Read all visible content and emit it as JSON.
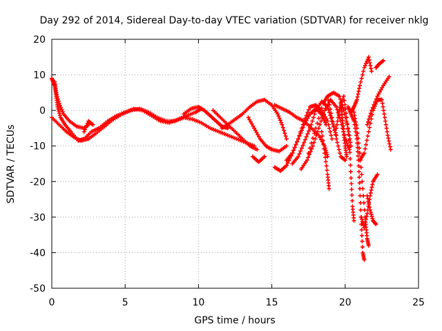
{
  "chart_data": {
    "type": "scatter",
    "title": "Day 292 of 2014, Sidereal Day-to-day VTEC variation (SDTVAR) for receiver nklg",
    "xlabel": "GPS time / hours",
    "ylabel": "SDTVAR / TECUs",
    "xlim": [
      0,
      25
    ],
    "ylim": [
      -50,
      20
    ],
    "xticks": [
      "0",
      "5",
      "10",
      "15",
      "20",
      "25"
    ],
    "yticks": [
      "-50",
      "-40",
      "-30",
      "-20",
      "-10",
      "0",
      "10",
      "20"
    ],
    "grid": true,
    "marker": "plus",
    "color": "#ff0000",
    "series": [
      {
        "name": "s1",
        "points": [
          [
            0.0,
            9
          ],
          [
            0.1,
            8
          ],
          [
            0.2,
            7
          ],
          [
            0.3,
            4
          ],
          [
            0.4,
            1
          ],
          [
            0.6,
            -2
          ],
          [
            0.9,
            -4
          ],
          [
            1.3,
            -6
          ],
          [
            1.8,
            -8.5
          ],
          [
            2.2,
            -8
          ],
          [
            2.7,
            -6
          ],
          [
            3.2,
            -5
          ],
          [
            3.8,
            -3
          ],
          [
            4.4,
            -1.5
          ],
          [
            5.0,
            -0.5
          ],
          [
            5.6,
            0.5
          ],
          [
            6.2,
            0
          ],
          [
            6.8,
            -1.5
          ],
          [
            7.4,
            -3
          ],
          [
            8.0,
            -3.5
          ],
          [
            8.6,
            -2.5
          ],
          [
            9.2,
            -1.5
          ],
          [
            9.8,
            -0.5
          ],
          [
            10.2,
            0.5
          ]
        ]
      },
      {
        "name": "s2",
        "points": [
          [
            0.0,
            -2
          ],
          [
            0.5,
            -4
          ],
          [
            1.0,
            -6
          ],
          [
            1.5,
            -7.5
          ],
          [
            2.0,
            -8.5
          ],
          [
            2.5,
            -8
          ],
          [
            3.0,
            -6.5
          ],
          [
            3.6,
            -4.5
          ],
          [
            4.2,
            -2.5
          ],
          [
            4.8,
            -1
          ],
          [
            5.4,
            0
          ],
          [
            6.0,
            0.5
          ],
          [
            6.6,
            -0.5
          ],
          [
            7.2,
            -2
          ],
          [
            7.8,
            -3
          ],
          [
            8.4,
            -3
          ],
          [
            9.0,
            -2
          ],
          [
            9.6,
            -2.5
          ],
          [
            10.2,
            -3.5
          ],
          [
            10.8,
            -5
          ],
          [
            11.4,
            -6
          ],
          [
            12.0,
            -7
          ],
          [
            12.6,
            -8
          ],
          [
            13.2,
            -9
          ],
          [
            13.8,
            -10
          ]
        ]
      },
      {
        "name": "s3",
        "points": [
          [
            0.2,
            8
          ],
          [
            0.3,
            5
          ],
          [
            0.5,
            2
          ],
          [
            0.8,
            -1
          ],
          [
            1.2,
            -3
          ],
          [
            1.7,
            -4.5
          ],
          [
            2.2,
            -5
          ],
          [
            2.5,
            -4
          ]
        ]
      },
      {
        "name": "s4",
        "points": [
          [
            2.2,
            -6
          ],
          [
            2.5,
            -3
          ],
          [
            2.8,
            -4
          ]
        ]
      },
      {
        "name": "s5",
        "points": [
          [
            9.0,
            -1
          ],
          [
            9.5,
            0.5
          ],
          [
            10.0,
            1
          ],
          [
            10.4,
            0
          ],
          [
            10.8,
            -1.5
          ],
          [
            11.2,
            -3
          ],
          [
            11.6,
            -4.5
          ],
          [
            12.0,
            -5
          ]
        ]
      },
      {
        "name": "s6",
        "points": [
          [
            11.0,
            0
          ],
          [
            11.5,
            -2
          ],
          [
            12.0,
            -4
          ],
          [
            12.5,
            -6
          ],
          [
            13.0,
            -8
          ],
          [
            13.5,
            -10
          ],
          [
            14.0,
            -11
          ]
        ]
      },
      {
        "name": "s7",
        "points": [
          [
            11.6,
            -5
          ],
          [
            12.0,
            -4
          ],
          [
            12.5,
            -2.5
          ],
          [
            13.0,
            -1
          ],
          [
            13.5,
            1
          ],
          [
            14.0,
            2.5
          ],
          [
            14.5,
            3
          ],
          [
            15.0,
            1.5
          ],
          [
            15.4,
            -1
          ],
          [
            15.7,
            -4
          ],
          [
            16.0,
            -8
          ]
        ]
      },
      {
        "name": "s8",
        "points": [
          [
            13.4,
            -2
          ],
          [
            13.8,
            -5
          ],
          [
            14.2,
            -8
          ],
          [
            14.6,
            -10
          ],
          [
            15.0,
            -11
          ],
          [
            15.5,
            -11.5
          ],
          [
            16.0,
            -10
          ]
        ]
      },
      {
        "name": "s9",
        "points": [
          [
            13.7,
            -13
          ],
          [
            14.1,
            -14.5
          ],
          [
            14.5,
            -13
          ]
        ]
      },
      {
        "name": "s10",
        "points": [
          [
            15.2,
            1.5
          ],
          [
            15.7,
            0.5
          ],
          [
            16.2,
            -0.5
          ],
          [
            16.7,
            -2
          ],
          [
            17.2,
            -3
          ],
          [
            17.7,
            -5
          ],
          [
            18.2,
            -7
          ],
          [
            18.6,
            -10
          ],
          [
            18.8,
            -13
          ]
        ]
      },
      {
        "name": "s11",
        "points": [
          [
            15.2,
            -16
          ],
          [
            15.6,
            -17
          ],
          [
            16.0,
            -15.5
          ],
          [
            16.4,
            -12
          ],
          [
            16.8,
            -8
          ],
          [
            17.2,
            -4
          ],
          [
            17.6,
            -1
          ],
          [
            18.0,
            0.5
          ],
          [
            18.4,
            -1
          ],
          [
            18.7,
            -4
          ]
        ]
      },
      {
        "name": "s12",
        "points": [
          [
            16.0,
            -14
          ],
          [
            16.4,
            -12
          ],
          [
            16.8,
            -8
          ],
          [
            17.2,
            -3
          ],
          [
            17.6,
            1
          ],
          [
            18.0,
            1.5
          ],
          [
            18.4,
            0
          ],
          [
            18.8,
            -3
          ],
          [
            19.1,
            -8
          ]
        ]
      },
      {
        "name": "s13",
        "points": [
          [
            16.4,
            -15
          ],
          [
            16.8,
            -13
          ],
          [
            17.2,
            -9
          ],
          [
            17.6,
            -5
          ],
          [
            18.0,
            0
          ],
          [
            18.4,
            2.5
          ],
          [
            18.8,
            1
          ],
          [
            19.1,
            -3
          ],
          [
            19.4,
            -7
          ]
        ]
      },
      {
        "name": "s14",
        "points": [
          [
            17.0,
            -16.5
          ],
          [
            17.4,
            -14
          ],
          [
            17.8,
            -10
          ],
          [
            18.2,
            -5
          ],
          [
            18.6,
            0
          ],
          [
            19.0,
            3
          ],
          [
            19.4,
            1
          ],
          [
            19.7,
            -3
          ],
          [
            20.0,
            -8
          ],
          [
            20.3,
            -11
          ]
        ]
      },
      {
        "name": "s15",
        "points": [
          [
            17.5,
            -12
          ],
          [
            18.0,
            -5
          ],
          [
            18.5,
            2
          ],
          [
            18.8,
            4
          ],
          [
            19.2,
            5
          ],
          [
            19.6,
            4
          ],
          [
            19.9,
            0
          ],
          [
            20.2,
            -5
          ],
          [
            20.4,
            -10
          ]
        ]
      },
      {
        "name": "s16",
        "points": [
          [
            18.4,
            -6
          ],
          [
            18.6,
            -12
          ],
          [
            18.8,
            -18
          ],
          [
            18.9,
            -22
          ]
        ]
      },
      {
        "name": "s17",
        "points": [
          [
            18.8,
            4
          ],
          [
            19.1,
            -2
          ],
          [
            19.4,
            -8
          ],
          [
            19.7,
            -13
          ],
          [
            20.0,
            -14
          ]
        ]
      },
      {
        "name": "s18",
        "points": [
          [
            19.4,
            -5
          ],
          [
            19.6,
            0
          ],
          [
            19.9,
            4
          ],
          [
            20.1,
            -2
          ],
          [
            20.3,
            -10
          ],
          [
            20.4,
            -19
          ],
          [
            20.5,
            -27
          ],
          [
            20.6,
            -31
          ]
        ]
      },
      {
        "name": "s19",
        "points": [
          [
            20.2,
            1
          ],
          [
            20.4,
            -1
          ],
          [
            20.6,
            -3
          ],
          [
            20.8,
            -8
          ],
          [
            20.9,
            -14
          ],
          [
            21.0,
            -22
          ],
          [
            21.1,
            -32
          ],
          [
            21.2,
            -40
          ],
          [
            21.3,
            -42
          ]
        ]
      },
      {
        "name": "s20",
        "points": [
          [
            20.4,
            -0.5
          ],
          [
            20.6,
            1
          ],
          [
            20.8,
            3
          ],
          [
            21.0,
            7
          ],
          [
            21.3,
            12
          ],
          [
            21.6,
            15
          ],
          [
            21.8,
            11
          ]
        ]
      },
      {
        "name": "s21",
        "points": [
          [
            20.6,
            -0.5
          ],
          [
            20.8,
            -5
          ],
          [
            21.0,
            -12
          ],
          [
            21.2,
            -22
          ],
          [
            21.4,
            -32
          ],
          [
            21.5,
            -36
          ],
          [
            21.6,
            -38
          ]
        ]
      },
      {
        "name": "s22",
        "points": [
          [
            21.0,
            -14
          ],
          [
            21.3,
            -12
          ],
          [
            21.6,
            -6
          ],
          [
            21.9,
            0
          ],
          [
            22.2,
            3
          ],
          [
            22.5,
            3
          ],
          [
            22.7,
            -2
          ],
          [
            22.9,
            -7
          ],
          [
            23.1,
            -11
          ]
        ]
      },
      {
        "name": "s23",
        "points": [
          [
            21.1,
            -30
          ],
          [
            21.3,
            -33
          ],
          [
            21.5,
            -29
          ],
          [
            21.7,
            -24
          ],
          [
            21.9,
            -20
          ],
          [
            22.2,
            -18
          ]
        ]
      },
      {
        "name": "s24",
        "points": [
          [
            21.5,
            -24
          ],
          [
            21.7,
            -28
          ],
          [
            21.9,
            -31
          ],
          [
            22.1,
            -32
          ]
        ]
      },
      {
        "name": "s25",
        "points": [
          [
            21.5,
            -4
          ],
          [
            21.8,
            0
          ],
          [
            22.2,
            4
          ],
          [
            22.6,
            7
          ],
          [
            23.0,
            9.5
          ]
        ]
      },
      {
        "name": "s26",
        "points": [
          [
            22.1,
            12
          ],
          [
            22.3,
            13
          ],
          [
            22.6,
            14
          ]
        ]
      },
      {
        "name": "s27",
        "points": [
          [
            19.7,
            2
          ],
          [
            19.8,
            -2
          ],
          [
            19.9,
            -6
          ],
          [
            20.0,
            -10
          ],
          [
            20.1,
            -13
          ]
        ]
      }
    ]
  }
}
